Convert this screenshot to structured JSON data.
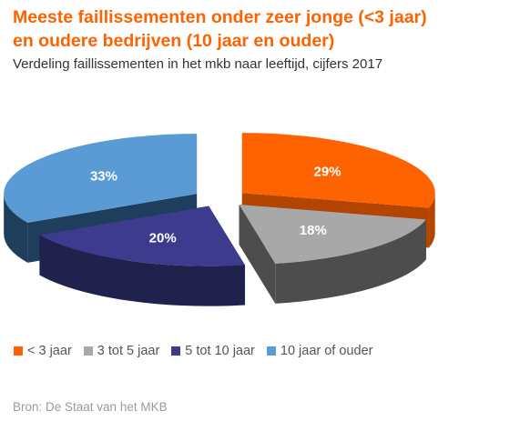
{
  "title_line1": "Meeste faillissementen onder zeer jonge (<3 jaar)",
  "title_line2": "en oudere bedrijven (10 jaar en ouder)",
  "subtitle": "Verdeling faillissementen in het mkb naar leeftijd, cijfers 2017",
  "source": "Bron: De Staat van het MKB",
  "chart_data": {
    "type": "pie",
    "style": "3d-exploded",
    "title": "Meeste faillissementen onder zeer jonge (<3 jaar) en oudere bedrijven (10 jaar en ouder)",
    "subtitle": "Verdeling faillissementen in het mkb naar leeftijd, cijfers 2017",
    "legend_position": "bottom",
    "categories": [
      "< 3 jaar",
      "3 tot 5 jaar",
      "5 tot 10 jaar",
      "10 jaar of ouder"
    ],
    "values": [
      29,
      18,
      20,
      33
    ],
    "labels": [
      "29%",
      "18%",
      "20%",
      "33%"
    ],
    "colors": [
      "#ff6200",
      "#a8a8a8",
      "#3d3b8e",
      "#5a9bd5"
    ],
    "side_colors": [
      "#b34500",
      "#4d4d4d",
      "#21214d",
      "#1f3e5c"
    ]
  }
}
